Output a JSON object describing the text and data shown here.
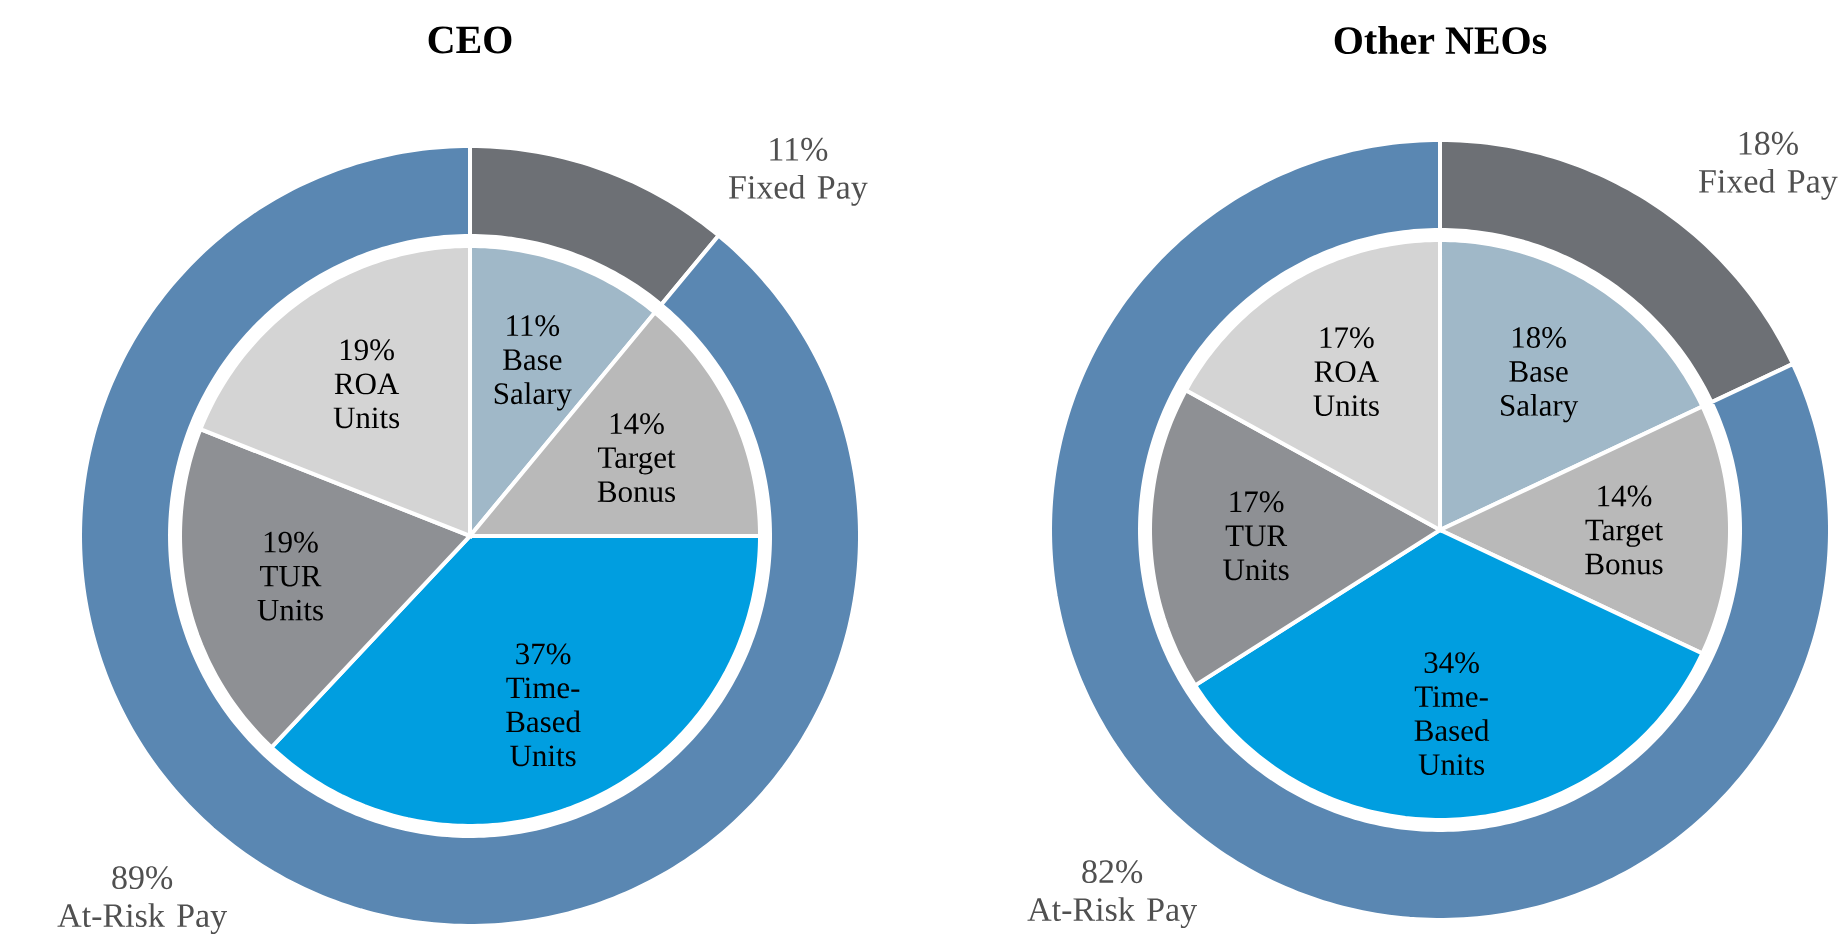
{
  "chart_data": [
    {
      "type": "donut",
      "title": "CEO",
      "categories": [
        "Fixed Pay",
        "At-Risk Pay"
      ],
      "values": [
        11,
        89
      ],
      "colors": [
        "#6d7075",
        "#5a87b2"
      ],
      "value_labels": [
        "11%",
        "89%"
      ]
    },
    {
      "type": "pie",
      "categories": [
        "Base Salary",
        "Target Bonus",
        "Time-Based Units",
        "TUR Units",
        "ROA Units"
      ],
      "values": [
        11,
        14,
        37,
        19,
        19
      ],
      "colors": [
        "#a0b8c8",
        "#b9b9b9",
        "#009ee0",
        "#8e9094",
        "#d4d4d4"
      ],
      "value_labels": [
        "11%",
        "14%",
        "37%",
        "19%",
        "19%"
      ]
    },
    {
      "type": "donut",
      "title": "Other NEOs",
      "categories": [
        "Fixed Pay",
        "At-Risk Pay"
      ],
      "values": [
        18,
        82
      ],
      "colors": [
        "#6d7075",
        "#5a87b2"
      ],
      "value_labels": [
        "18%",
        "82%"
      ]
    },
    {
      "type": "pie",
      "categories": [
        "Base Salary",
        "Target Bonus",
        "Time-Based Units",
        "TUR Units",
        "ROA Units"
      ],
      "values": [
        18,
        14,
        34,
        17,
        17
      ],
      "colors": [
        "#a0b8c8",
        "#b9b9b9",
        "#009ee0",
        "#8e9094",
        "#d4d4d4"
      ],
      "value_labels": [
        "18%",
        "14%",
        "34%",
        "17%",
        "17%"
      ]
    }
  ]
}
